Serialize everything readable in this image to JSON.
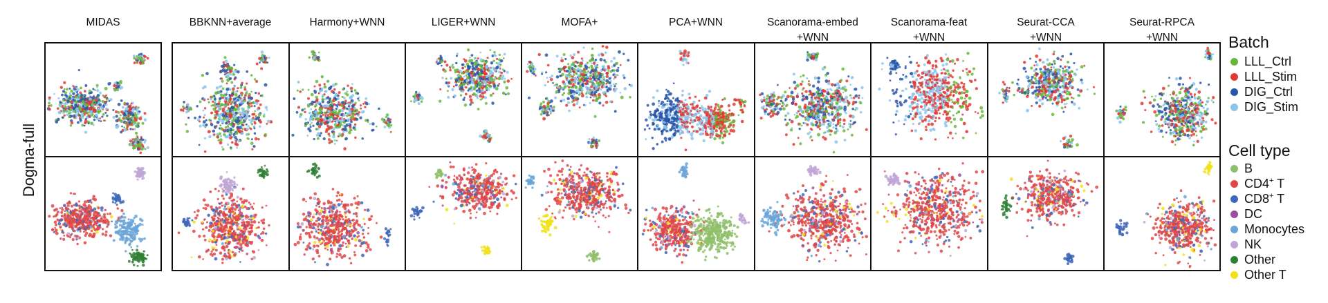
{
  "figure": {
    "row_label": "Dogma-full",
    "methods": [
      {
        "line1": "MIDAS",
        "line2": ""
      },
      {
        "line1": "BBKNN+average",
        "line2": ""
      },
      {
        "line1": "Harmony+WNN",
        "line2": ""
      },
      {
        "line1": "LIGER+WNN",
        "line2": ""
      },
      {
        "line1": "MOFA+",
        "line2": ""
      },
      {
        "line1": "PCA+WNN",
        "line2": ""
      },
      {
        "line1": "Scanorama-embed",
        "line2": "+WNN"
      },
      {
        "line1": "Scanorama-feat",
        "line2": "+WNN"
      },
      {
        "line1": "Seurat-CCA",
        "line2": "+WNN"
      },
      {
        "line1": "Seurat-RPCA",
        "line2": "+WNN"
      }
    ]
  },
  "legend": {
    "batch": {
      "title": "Batch",
      "items": [
        {
          "label": "LLL_Ctrl",
          "color": "#66b83b"
        },
        {
          "label": "LLL_Stim",
          "color": "#e03a32"
        },
        {
          "label": "DIG_Ctrl",
          "color": "#2a56a8"
        },
        {
          "label": "DIG_Stim",
          "color": "#8cc4ec"
        }
      ]
    },
    "celltype": {
      "title": "Cell type",
      "items": [
        {
          "label": "B",
          "sup": "",
          "suffix": "",
          "color": "#8fbf6a"
        },
        {
          "label": "CD4",
          "sup": "+",
          "suffix": " T",
          "color": "#e04646"
        },
        {
          "label": "CD8",
          "sup": "+",
          "suffix": " T",
          "color": "#4068b8"
        },
        {
          "label": "DC",
          "sup": "",
          "suffix": "",
          "color": "#9b4d9e"
        },
        {
          "label": "Monocytes",
          "sup": "",
          "suffix": "",
          "color": "#6aa5d8"
        },
        {
          "label": "NK",
          "sup": "",
          "suffix": "",
          "color": "#c0a6d6"
        },
        {
          "label": "Other",
          "sup": "",
          "suffix": "",
          "color": "#2f7f35"
        },
        {
          "label": "Other T",
          "sup": "",
          "suffix": "",
          "color": "#f0e21a"
        }
      ]
    }
  }
}
